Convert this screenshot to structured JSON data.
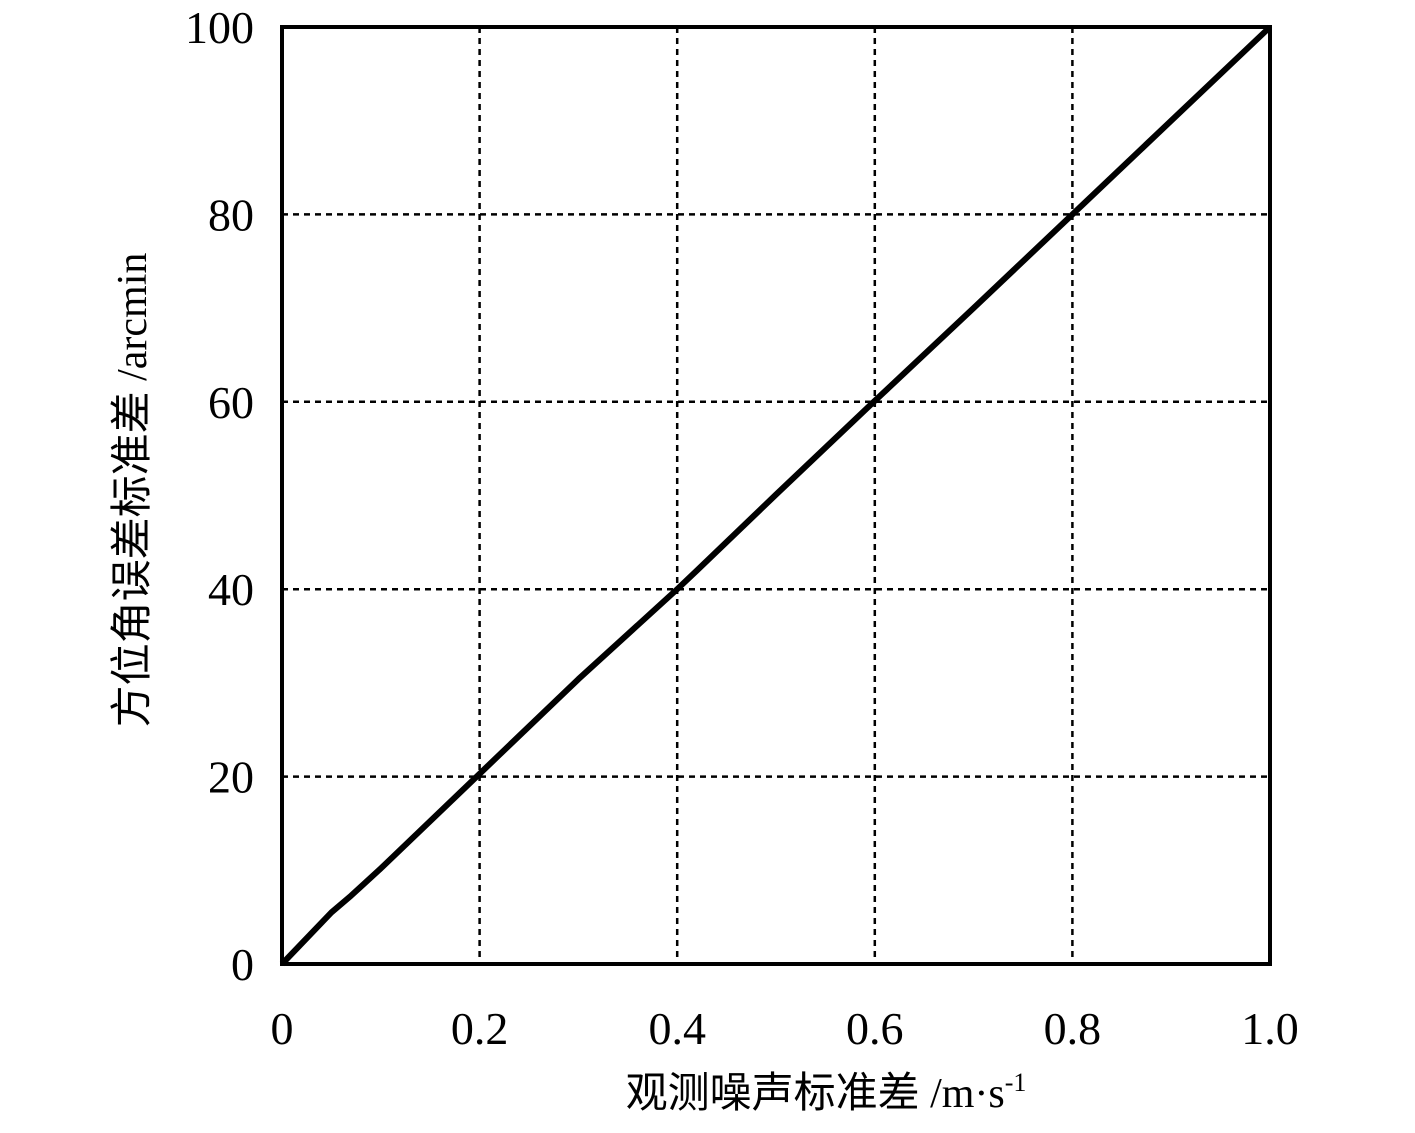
{
  "chart_data": {
    "type": "line",
    "xlabel": "观测噪声标准差 /m·s",
    "xlabel_sup": "-1",
    "ylabel": "方位角误差标准差 /arcmin",
    "x": [
      0,
      0.02,
      0.05,
      0.07,
      0.1,
      0.2,
      0.3,
      0.4,
      0.42,
      0.5,
      0.6,
      0.7,
      0.8,
      0.9,
      1.0
    ],
    "series": [
      {
        "color": "#000000",
        "values": [
          0,
          2.2,
          5.5,
          7.3,
          10.2,
          20.3,
          30.4,
          40.0,
          42.0,
          50.1,
          60.1,
          70.0,
          80.0,
          90.0,
          100
        ]
      }
    ],
    "xlim": [
      0,
      1
    ],
    "xticks": [
      0,
      0.2,
      0.4,
      0.6,
      0.8,
      {
        "value": 1,
        "label": "1.0"
      }
    ],
    "ylim": [
      0,
      100
    ],
    "yticks": [
      0,
      20,
      40,
      60,
      80,
      100
    ],
    "grid": true
  }
}
